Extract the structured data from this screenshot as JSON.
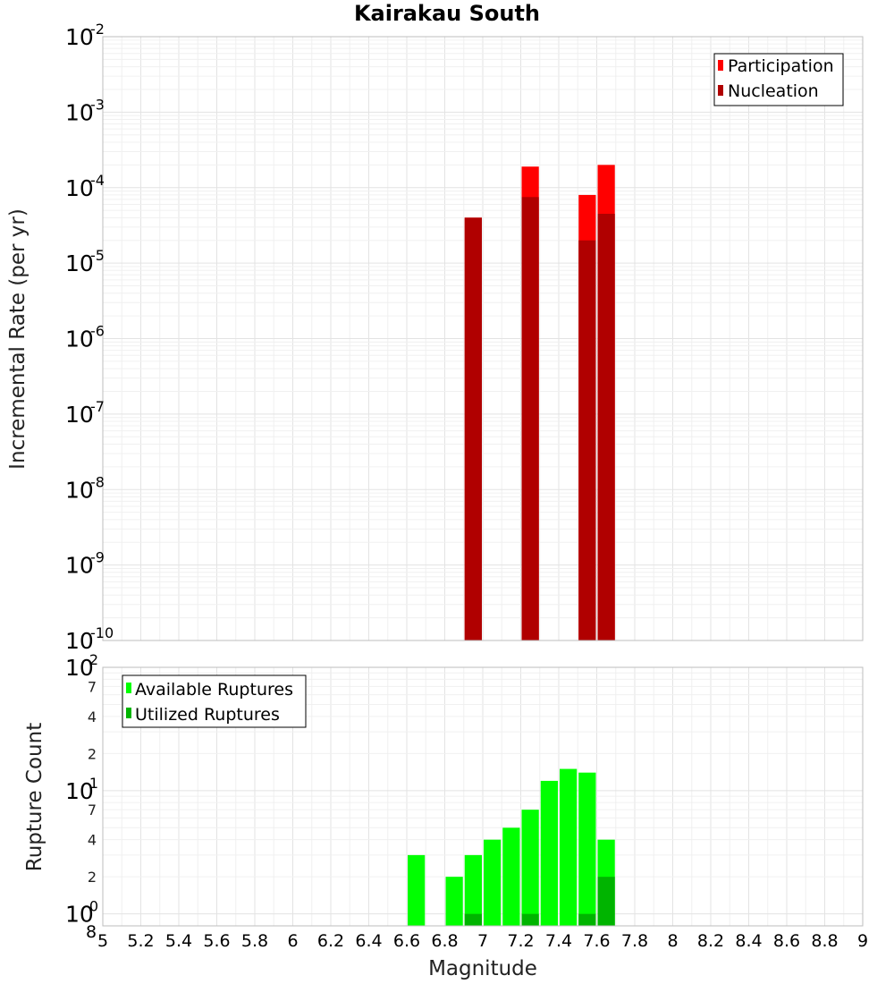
{
  "chart_data": [
    {
      "type": "bar",
      "title": "Kairakau South",
      "xlabel": "",
      "ylabel": "Incremental Rate (per yr)",
      "yscale": "log",
      "ylim": [
        1e-10,
        0.01
      ],
      "xlim": [
        5,
        9
      ],
      "legend": "top-right",
      "y_tick_exponents": [
        "-10",
        "-9",
        "-8",
        "-7",
        "-6",
        "-5",
        "-4",
        "-3",
        "-2"
      ],
      "y_tick_base": "10",
      "bin_width": 0.1,
      "series": [
        {
          "name": "Participation",
          "color": "#ff0000",
          "x": [
            6.95,
            7.25,
            7.55,
            7.65
          ],
          "values": [
            4e-05,
            0.00019,
            8e-05,
            0.0002
          ]
        },
        {
          "name": "Nucleation",
          "color": "#b00000",
          "x": [
            6.95,
            7.25,
            7.55,
            7.65
          ],
          "values": [
            4e-05,
            7.5e-05,
            2e-05,
            4.5e-05
          ]
        }
      ]
    },
    {
      "type": "bar",
      "title": "",
      "xlabel": "Magnitude",
      "ylabel": "Rupture Count",
      "yscale": "log",
      "ylim": [
        0.8,
        100
      ],
      "xlim": [
        5,
        9
      ],
      "legend": "top-left",
      "y_major_ticks": [
        {
          "value": 1,
          "base": "10",
          "exp": "0"
        },
        {
          "value": 10,
          "base": "10",
          "exp": "1"
        },
        {
          "value": 100,
          "base": "10",
          "exp": "2"
        }
      ],
      "y_minor_ticks": [
        {
          "value": 0.8,
          "label": "8"
        },
        {
          "value": 2,
          "label": "2"
        },
        {
          "value": 4,
          "label": "4"
        },
        {
          "value": 7,
          "label": "7"
        },
        {
          "value": 20,
          "label": "2"
        },
        {
          "value": 40,
          "label": "4"
        },
        {
          "value": 70,
          "label": "7"
        }
      ],
      "x_ticks": [
        "5",
        "5.2",
        "5.4",
        "5.6",
        "5.8",
        "6",
        "6.2",
        "6.4",
        "6.6",
        "6.8",
        "7",
        "7.2",
        "7.4",
        "7.6",
        "7.8",
        "8",
        "8.2",
        "8.4",
        "8.6",
        "8.8",
        "9"
      ],
      "bin_width": 0.1,
      "series": [
        {
          "name": "Available Ruptures",
          "color": "#00ff00",
          "x": [
            6.65,
            6.85,
            6.95,
            7.05,
            7.15,
            7.25,
            7.35,
            7.45,
            7.55,
            7.65
          ],
          "values": [
            3,
            2,
            3,
            4,
            5,
            7,
            12,
            15,
            14,
            4
          ]
        },
        {
          "name": "Utilized Ruptures",
          "color": "#00b400",
          "x": [
            6.95,
            7.25,
            7.55,
            7.65
          ],
          "values": [
            1,
            1,
            1,
            2
          ]
        }
      ]
    }
  ]
}
